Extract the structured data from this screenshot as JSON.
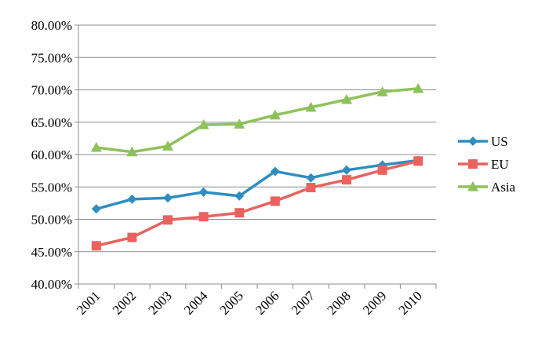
{
  "chart_data": {
    "type": "line",
    "categories": [
      "2001",
      "2002",
      "2003",
      "2004",
      "2005",
      "2006",
      "2007",
      "2008",
      "2009",
      "2010"
    ],
    "ylim": [
      0.4,
      0.8
    ],
    "yticks": [
      0.4,
      0.45,
      0.5,
      0.55,
      0.6,
      0.65,
      0.7,
      0.75,
      0.8
    ],
    "ytick_labels": [
      "40.00%",
      "45.00%",
      "50.00%",
      "55.00%",
      "60.00%",
      "65.00%",
      "70.00%",
      "75.00%",
      "80.00%"
    ],
    "grid": "horizontal",
    "legend_position": "right",
    "series": [
      {
        "name": "US",
        "color": "#2e8ec0",
        "marker": "diamond",
        "values": [
          0.516,
          0.531,
          0.533,
          0.542,
          0.536,
          0.574,
          0.564,
          0.576,
          0.584,
          0.591
        ]
      },
      {
        "name": "EU",
        "color": "#e8625e",
        "marker": "square",
        "values": [
          0.459,
          0.472,
          0.499,
          0.504,
          0.51,
          0.528,
          0.549,
          0.561,
          0.576,
          0.59
        ]
      },
      {
        "name": "Asia",
        "color": "#8dc25a",
        "marker": "triangle",
        "values": [
          0.611,
          0.604,
          0.613,
          0.646,
          0.647,
          0.661,
          0.673,
          0.685,
          0.697,
          0.702
        ]
      }
    ]
  }
}
